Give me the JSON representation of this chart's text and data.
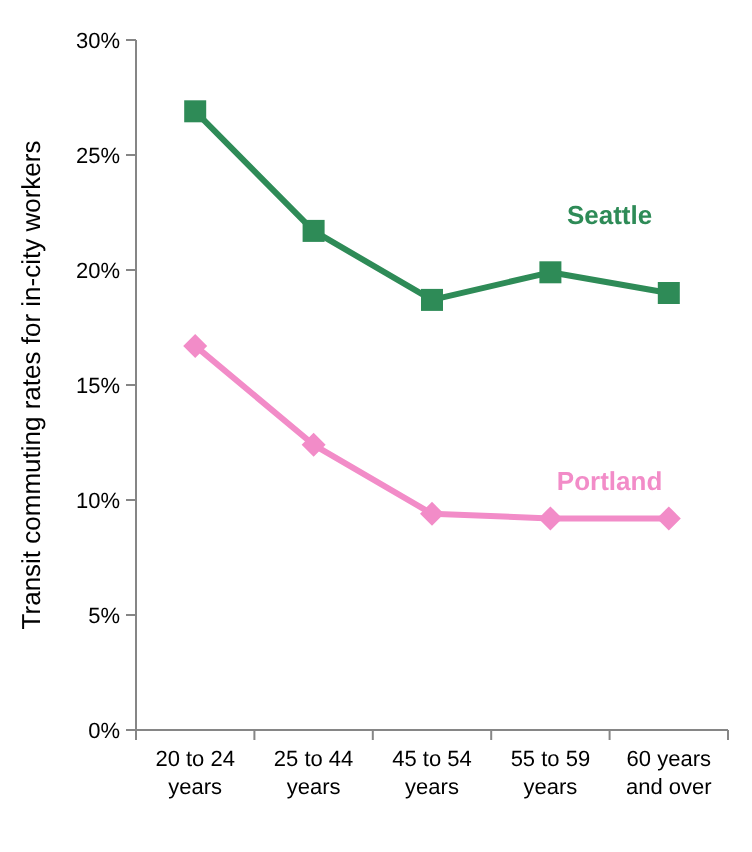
{
  "chart_data": {
    "type": "line",
    "ylabel": "Transit commuting rates for in-city workers",
    "categories": [
      "20 to 24 years",
      "25 to 44 years",
      "45 to 54 years",
      "55 to 59 years",
      "60 years and over"
    ],
    "series": [
      {
        "name": "Seattle",
        "color": "#2e8b57",
        "marker": "square",
        "values": [
          26.9,
          21.7,
          18.7,
          19.9,
          19.0
        ]
      },
      {
        "name": "Portland",
        "color": "#f28cc8",
        "marker": "diamond",
        "values": [
          16.7,
          12.4,
          9.4,
          9.2,
          9.2
        ]
      }
    ],
    "ylim": [
      0,
      30
    ],
    "yticks": [
      {
        "value": 0,
        "label": "0%"
      },
      {
        "value": 5,
        "label": "5%"
      },
      {
        "value": 10,
        "label": "10%"
      },
      {
        "value": 15,
        "label": "15%"
      },
      {
        "value": 20,
        "label": "20%"
      },
      {
        "value": 25,
        "label": "25%"
      },
      {
        "value": 30,
        "label": "30%"
      }
    ],
    "grid": false,
    "legend": false,
    "line_style": "solid"
  }
}
